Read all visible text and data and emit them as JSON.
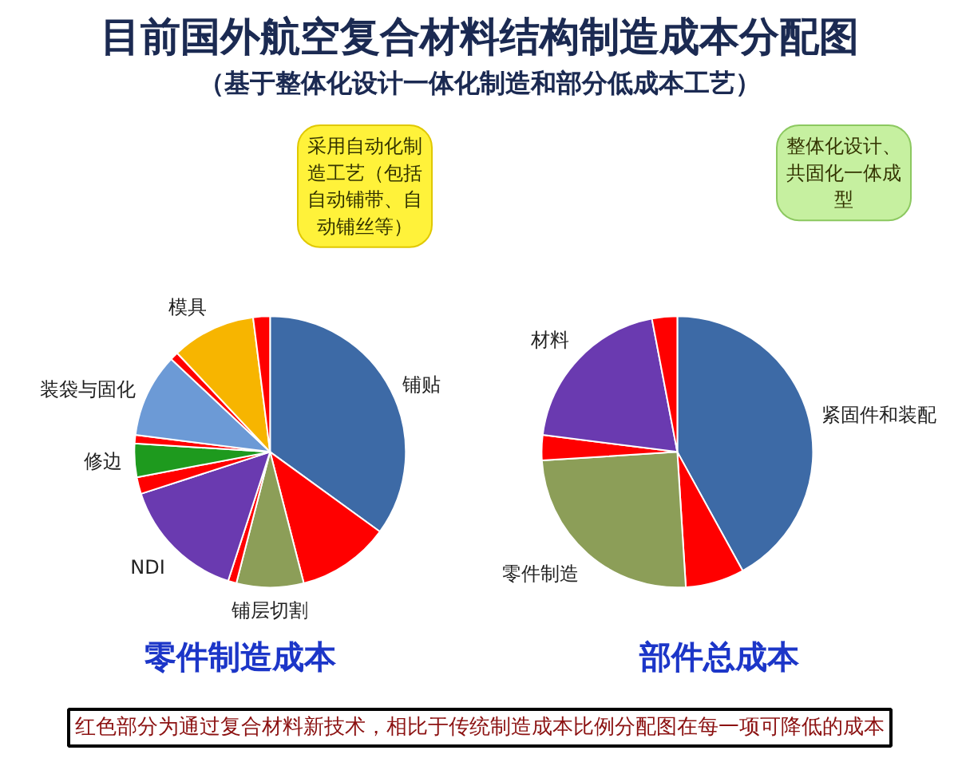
{
  "chart_data": [
    {
      "type": "other",
      "title": "目前国外航空复合材料结构制造成本分配图",
      "subtitle": "（基于整体化设计一体化制造和部分低成本工艺）"
    },
    {
      "type": "pie",
      "title": "零件制造成本",
      "annotations": [
        "采用自动化制造工艺（包括自动铺带、自动铺丝等）"
      ],
      "categories": [
        "铺贴",
        null,
        "铺层切割",
        null,
        "NDI",
        null,
        "修边",
        null,
        "装袋与固化",
        null,
        "模具",
        null
      ],
      "values": [
        35,
        11,
        8,
        1,
        15,
        2,
        4,
        1,
        10,
        1,
        10,
        2
      ],
      "colors": [
        "#3d6aa6",
        "#ff0000",
        "#8c9e58",
        "#ff0000",
        "#6a3ab0",
        "#ff0000",
        "#1e9a1e",
        "#ff0000",
        "#6c9ad6",
        "#ff0000",
        "#f7b500",
        "#ff0000"
      ]
    },
    {
      "type": "pie",
      "title": "部件总成本",
      "annotations": [
        "整体化设计、共固化一体成型"
      ],
      "categories": [
        "紧固件和装配",
        null,
        "零件制造",
        null,
        "材料",
        null
      ],
      "values": [
        42,
        7,
        25,
        3,
        20,
        3
      ],
      "colors": [
        "#3d6aa6",
        "#ff0000",
        "#8c9e58",
        "#ff0000",
        "#6a3ab0",
        "#ff0000"
      ]
    },
    {
      "type": "other",
      "annotations": [
        "红色部分为通过复合材料新技术，相比于传统制造成本比例分配图在每一项可降低的成本"
      ]
    }
  ]
}
